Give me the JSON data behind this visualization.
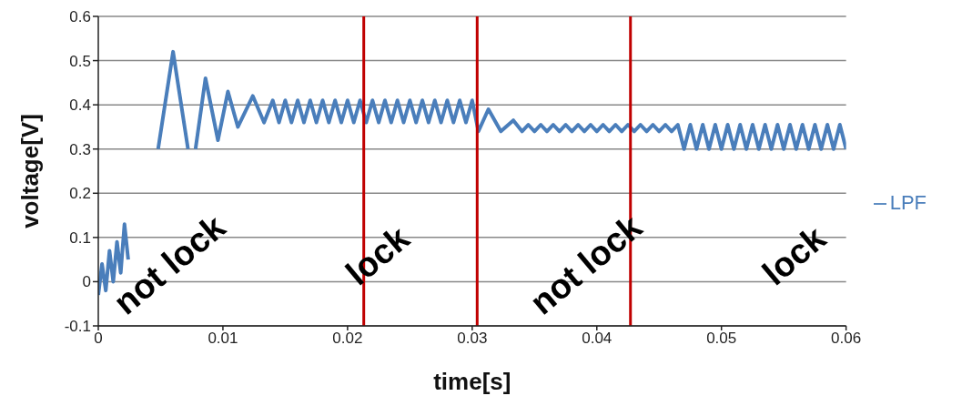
{
  "chart_data": {
    "type": "line",
    "xlabel": "time[s]",
    "ylabel": "voltage[V]",
    "xlim": [
      0,
      0.06
    ],
    "xticks": [
      0,
      0.01,
      0.02,
      0.03,
      0.04,
      0.05,
      0.06
    ],
    "ylim": [
      -0.1,
      0.6
    ],
    "yticks": [
      -0.1,
      0,
      0.1,
      0.2,
      0.3,
      0.4,
      0.5,
      0.6
    ],
    "grid": "y",
    "legend": "right",
    "marker": "none",
    "line_style": "solid",
    "series": [
      {
        "name": "LPF",
        "color": "#4a7ebb",
        "x": [
          0,
          0.0003,
          0.0006,
          0.0009,
          0.0012,
          0.0015,
          0.0018,
          0.0021,
          0.0024,
          0.0027,
          0.0048,
          0.006,
          0.0072,
          0.0075,
          0.0078,
          0.0086,
          0.0096,
          0.0104,
          0.0112,
          0.0124,
          0.0133,
          0.014,
          0.0145,
          0.015,
          0.0155,
          0.016,
          0.0165,
          0.017,
          0.0175,
          0.018,
          0.0185,
          0.019,
          0.0195,
          0.02,
          0.0205,
          0.021,
          0.0215,
          0.022,
          0.0225,
          0.023,
          0.0235,
          0.024,
          0.0245,
          0.025,
          0.0255,
          0.026,
          0.0265,
          0.027,
          0.0275,
          0.028,
          0.0285,
          0.029,
          0.0295,
          0.03,
          0.0305,
          0.0313,
          0.0323,
          0.0333,
          0.034,
          0.0345,
          0.035,
          0.0355,
          0.036,
          0.0365,
          0.037,
          0.0375,
          0.038,
          0.0385,
          0.039,
          0.0395,
          0.04,
          0.0405,
          0.041,
          0.0415,
          0.042,
          0.0425,
          0.043,
          0.0435,
          0.044,
          0.0445,
          0.045,
          0.0455,
          0.046,
          0.0465,
          0.047,
          0.0475,
          0.048,
          0.0485,
          0.049,
          0.0495,
          0.05,
          0.0505,
          0.051,
          0.0515,
          0.052,
          0.0525,
          0.053,
          0.0535,
          0.054,
          0.0545,
          0.055,
          0.0555,
          0.056,
          0.0565,
          0.057,
          0.0575,
          0.058,
          0.0585,
          0.059,
          0.0595,
          0.06
        ],
        "values": [
          -0.03,
          0.04,
          -0.02,
          0.07,
          0.0,
          0.09,
          0.02,
          0.13,
          0.05,
          null,
          0.3,
          0.52,
          0.3,
          null,
          0.3,
          0.46,
          0.32,
          0.43,
          0.35,
          0.42,
          0.36,
          0.41,
          0.36,
          0.41,
          0.36,
          0.41,
          0.36,
          0.41,
          0.36,
          0.41,
          0.36,
          0.41,
          0.36,
          0.41,
          0.36,
          0.41,
          0.36,
          0.41,
          0.36,
          0.41,
          0.36,
          0.41,
          0.36,
          0.41,
          0.36,
          0.41,
          0.36,
          0.41,
          0.36,
          0.41,
          0.36,
          0.41,
          0.36,
          0.41,
          0.34,
          0.39,
          0.34,
          0.365,
          0.34,
          0.355,
          0.34,
          0.355,
          0.34,
          0.355,
          0.34,
          0.355,
          0.34,
          0.355,
          0.34,
          0.355,
          0.34,
          0.355,
          0.34,
          0.355,
          0.34,
          0.355,
          0.34,
          0.355,
          0.34,
          0.355,
          0.34,
          0.355,
          0.34,
          0.355,
          0.3,
          0.355,
          0.3,
          0.355,
          0.3,
          0.355,
          0.3,
          0.355,
          0.3,
          0.355,
          0.3,
          0.355,
          0.3,
          0.355,
          0.3,
          0.355,
          0.3,
          0.355,
          0.3,
          0.355,
          0.3,
          0.355,
          0.3,
          0.355,
          0.3,
          0.355,
          0.3
        ]
      }
    ],
    "ref_lines": [
      {
        "axis": "x",
        "value": 0.0213,
        "color": "#c00000"
      },
      {
        "axis": "x",
        "value": 0.0304,
        "color": "#c00000"
      },
      {
        "axis": "x",
        "value": 0.0427,
        "color": "#c00000"
      }
    ],
    "annotations": [
      "not lock",
      "lock",
      "not lock",
      "lock"
    ]
  }
}
